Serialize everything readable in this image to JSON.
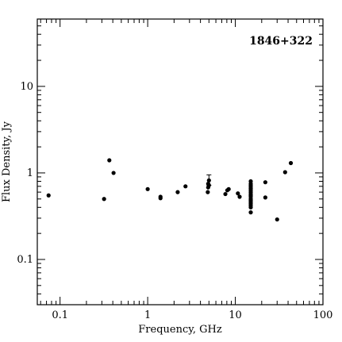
{
  "chart_data": {
    "type": "scatter",
    "title": "1846+322",
    "xlabel": "Frequency, GHz",
    "ylabel": "Flux Density, Jy",
    "xscale": "log",
    "yscale": "log",
    "xlim": [
      0.055,
      100
    ],
    "ylim": [
      0.03,
      60
    ],
    "xticks": [
      {
        "value": 0.1,
        "label": "0.1"
      },
      {
        "value": 1,
        "label": "1"
      },
      {
        "value": 10,
        "label": "10"
      },
      {
        "value": 100,
        "label": "100"
      }
    ],
    "yticks": [
      {
        "value": 0.1,
        "label": "0.1"
      },
      {
        "value": 1,
        "label": "1"
      },
      {
        "value": 10,
        "label": "10"
      }
    ],
    "grid": false,
    "legend": "none",
    "marker_color": "#000000",
    "points": [
      {
        "x": 0.074,
        "y": 0.55
      },
      {
        "x": 0.318,
        "y": 0.5
      },
      {
        "x": 0.365,
        "y": 1.4
      },
      {
        "x": 0.408,
        "y": 1.0
      },
      {
        "x": 1.0,
        "y": 0.65
      },
      {
        "x": 1.4,
        "y": 0.53
      },
      {
        "x": 1.4,
        "y": 0.51
      },
      {
        "x": 2.2,
        "y": 0.6
      },
      {
        "x": 2.7,
        "y": 0.7
      },
      {
        "x": 4.85,
        "y": 0.6
      },
      {
        "x": 4.9,
        "y": 0.68
      },
      {
        "x": 4.9,
        "y": 0.75
      },
      {
        "x": 5.0,
        "y": 0.82,
        "err": [
          0.72,
          0.95
        ]
      },
      {
        "x": 5.0,
        "y": 0.72
      },
      {
        "x": 7.7,
        "y": 0.57
      },
      {
        "x": 8.1,
        "y": 0.63
      },
      {
        "x": 8.4,
        "y": 0.65
      },
      {
        "x": 10.7,
        "y": 0.58
      },
      {
        "x": 11.2,
        "y": 0.53
      },
      {
        "x": 15,
        "y": 0.8
      },
      {
        "x": 15,
        "y": 0.75
      },
      {
        "x": 15,
        "y": 0.72
      },
      {
        "x": 15,
        "y": 0.69
      },
      {
        "x": 15,
        "y": 0.66
      },
      {
        "x": 15,
        "y": 0.63
      },
      {
        "x": 15,
        "y": 0.6
      },
      {
        "x": 15,
        "y": 0.57
      },
      {
        "x": 15,
        "y": 0.55
      },
      {
        "x": 15,
        "y": 0.53
      },
      {
        "x": 15,
        "y": 0.5
      },
      {
        "x": 15,
        "y": 0.48
      },
      {
        "x": 15,
        "y": 0.46
      },
      {
        "x": 15,
        "y": 0.44
      },
      {
        "x": 15,
        "y": 0.42
      },
      {
        "x": 15,
        "y": 0.4
      },
      {
        "x": 15,
        "y": 0.35
      },
      {
        "x": 22,
        "y": 0.78
      },
      {
        "x": 22,
        "y": 0.52
      },
      {
        "x": 30,
        "y": 0.29
      },
      {
        "x": 37,
        "y": 1.02
      },
      {
        "x": 43,
        "y": 1.3
      }
    ]
  }
}
